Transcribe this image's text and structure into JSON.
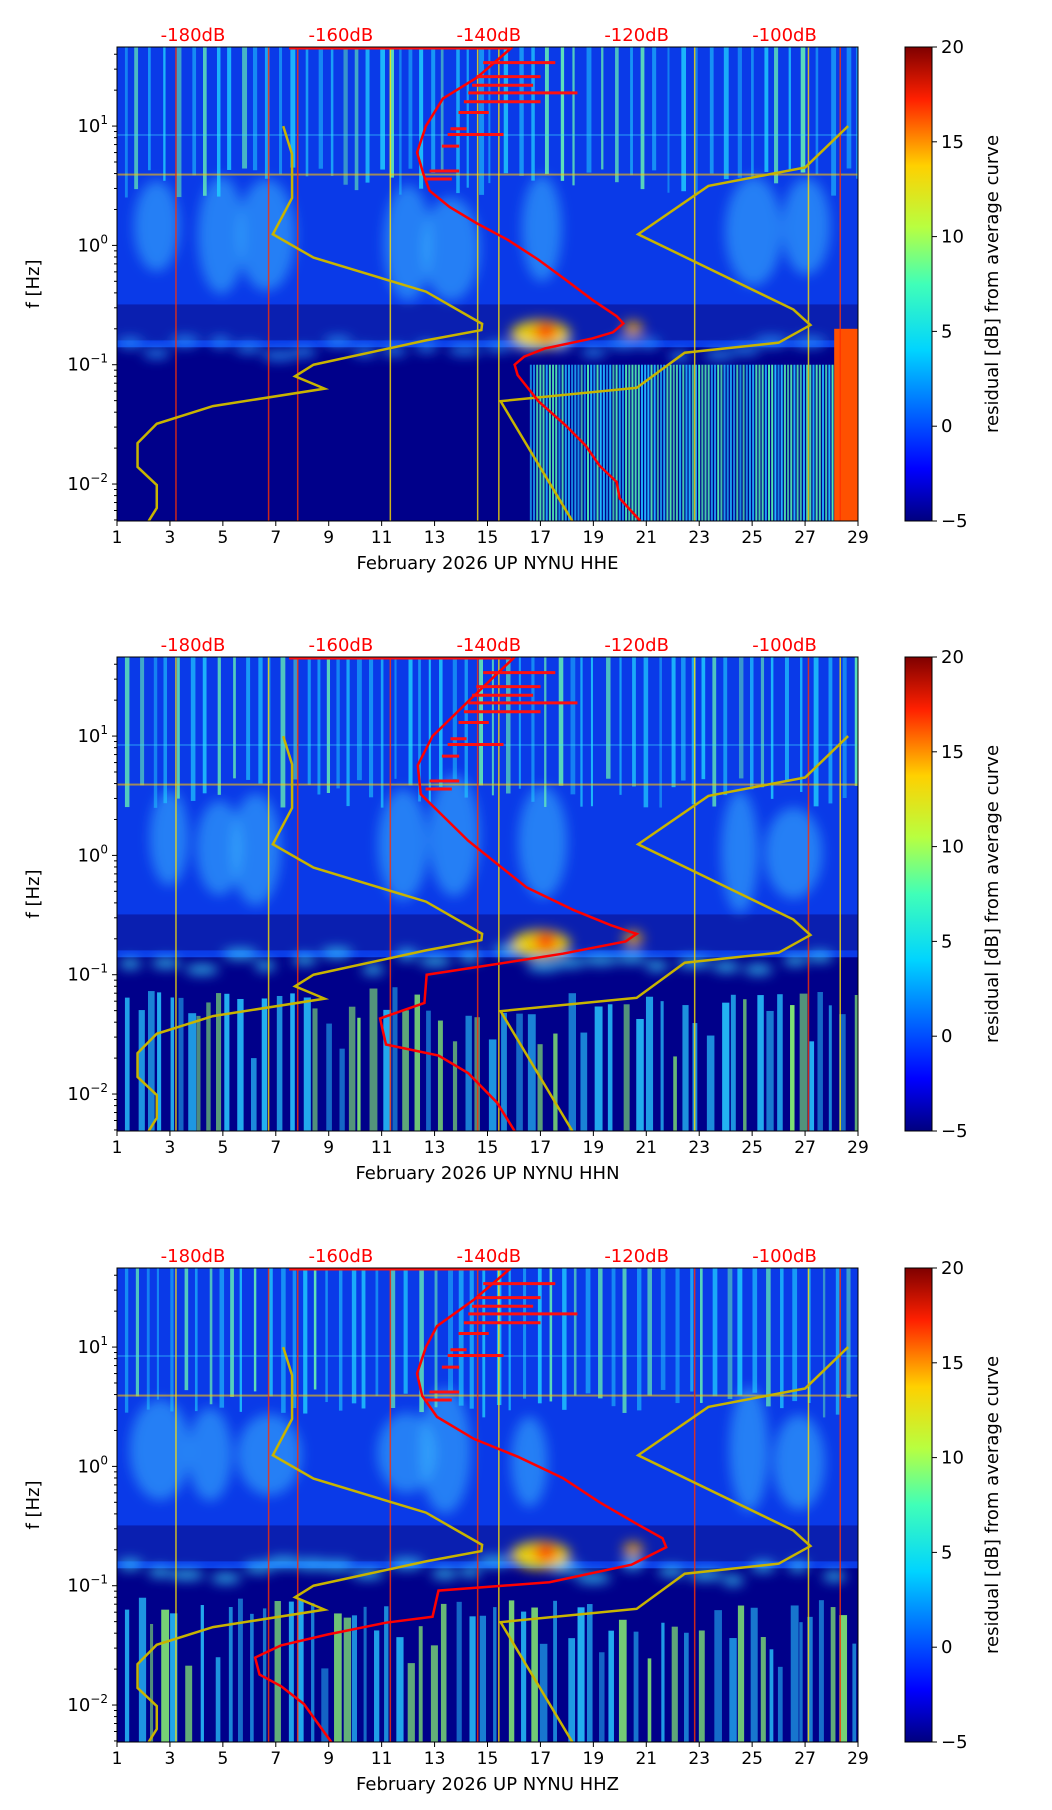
{
  "chart_data": {
    "type": "heatmap",
    "x_ticks": [
      "1",
      "3",
      "5",
      "7",
      "9",
      "11",
      "13",
      "15",
      "17",
      "19",
      "21",
      "23",
      "25",
      "27",
      "29"
    ],
    "xlim_days": [
      1,
      29
    ],
    "ylabel": "f [Hz]",
    "ylim_hz": [
      0.0049,
      46
    ],
    "y_scale": "log",
    "y_ticks": [
      {
        "base": "10",
        "exp": "1",
        "value": 10
      },
      {
        "base": "10",
        "exp": "0",
        "value": 1
      },
      {
        "base": "10",
        "exp": "−1",
        "value": 0.1
      },
      {
        "base": "10",
        "exp": "−2",
        "value": 0.01
      }
    ],
    "top_axis_ticks": [
      {
        "label": "-180dB",
        "db": -180
      },
      {
        "label": "-160dB",
        "db": -160
      },
      {
        "label": "-140dB",
        "db": -140
      },
      {
        "label": "-120dB",
        "db": -120
      },
      {
        "label": "-100dB",
        "db": -100
      }
    ],
    "top_axis_color": "#ff0000",
    "colorbar": {
      "label": "residual [dB] from average curve",
      "range": [
        -5,
        20
      ],
      "ticks": [
        "20",
        "15",
        "10",
        "5",
        "0",
        "−5"
      ],
      "colormap": "jet"
    },
    "noise_models": {
      "color": "#c8b400",
      "low": [
        [
          -167.8,
          10
        ],
        [
          -166.6,
          5.8
        ],
        [
          -166.6,
          2.5
        ],
        [
          -169.2,
          1.24
        ],
        [
          -163.7,
          0.79
        ],
        [
          -148.5,
          0.41
        ],
        [
          -140.9,
          0.22
        ],
        [
          -141.0,
          0.195
        ],
        [
          -148.5,
          0.16
        ],
        [
          -163.7,
          0.1
        ],
        [
          -166.2,
          0.08
        ],
        [
          -162.2,
          0.063
        ],
        [
          -177.3,
          0.045
        ],
        [
          -184.9,
          0.032
        ],
        [
          -187.5,
          0.022
        ],
        [
          -187.5,
          0.0139
        ],
        [
          -184.9,
          0.0098
        ],
        [
          -184.9,
          0.0063
        ],
        [
          -186.0,
          0.0049
        ]
      ],
      "high": [
        [
          -91.4,
          10
        ],
        [
          -97.2,
          4.5
        ],
        [
          -110.3,
          3.15
        ],
        [
          -119.8,
          1.24
        ],
        [
          -98.8,
          0.29
        ],
        [
          -96.5,
          0.215
        ],
        [
          -100.8,
          0.153
        ],
        [
          -113.5,
          0.126
        ],
        [
          -120.0,
          0.064
        ],
        [
          -138.4,
          0.0495
        ],
        [
          -128.7,
          0.0049
        ]
      ]
    },
    "panels": [
      {
        "xlabel": "February 2026 UP NYNU  HHE",
        "psd_color": "#ff0000",
        "psd": [
          [
            -136.8,
            46
          ],
          [
            -141.6,
            25.5
          ],
          [
            -146.2,
            17
          ],
          [
            -148.5,
            10
          ],
          [
            -149.7,
            6
          ],
          [
            -148.8,
            3.9
          ],
          [
            -148.0,
            2.87
          ],
          [
            -145.3,
            2.1
          ],
          [
            -141.6,
            1.53
          ],
          [
            -137.5,
            1.12
          ],
          [
            -133.3,
            0.76
          ],
          [
            -129.6,
            0.515
          ],
          [
            -126.0,
            0.35
          ],
          [
            -122.7,
            0.255
          ],
          [
            -121.8,
            0.222
          ],
          [
            -123.2,
            0.187
          ],
          [
            -126.0,
            0.166
          ],
          [
            -132.4,
            0.137
          ],
          [
            -135.2,
            0.117
          ],
          [
            -136.5,
            0.1
          ],
          [
            -136.1,
            0.082
          ],
          [
            -133.3,
            0.0495
          ],
          [
            -129.6,
            0.031
          ],
          [
            -126.9,
            0.021
          ],
          [
            -125.0,
            0.0142
          ],
          [
            -122.7,
            0.0104
          ],
          [
            -122.3,
            0.0076
          ],
          [
            -119.5,
            0.0049
          ]
        ]
      },
      {
        "xlabel": "February 2026 UP NYNU  HHN",
        "psd_color": "#ff0000",
        "psd": [
          [
            -136.5,
            46
          ],
          [
            -142.8,
            19.5
          ],
          [
            -147.6,
            10
          ],
          [
            -149.6,
            5.7
          ],
          [
            -149.2,
            3.26
          ],
          [
            -142.8,
            1.33
          ],
          [
            -134.9,
            0.54
          ],
          [
            -128.6,
            0.35
          ],
          [
            -123.5,
            0.26
          ],
          [
            -120.0,
            0.22
          ],
          [
            -121.5,
            0.19
          ],
          [
            -130,
            0.15
          ],
          [
            -140,
            0.12
          ],
          [
            -148.4,
            0.1
          ],
          [
            -148.7,
            0.058
          ],
          [
            -154.7,
            0.043
          ],
          [
            -153.9,
            0.026
          ],
          [
            -146.8,
            0.021
          ],
          [
            -142.8,
            0.015
          ],
          [
            -138.9,
            0.0085
          ],
          [
            -136.5,
            0.0049
          ]
        ]
      },
      {
        "xlabel": "February 2026 UP NYNU  HHZ",
        "psd_color": "#ff0000",
        "psd": [
          [
            -137,
            46
          ],
          [
            -142,
            25
          ],
          [
            -147,
            15
          ],
          [
            -148.5,
            10
          ],
          [
            -149.7,
            6
          ],
          [
            -149,
            3.9
          ],
          [
            -147,
            2.6
          ],
          [
            -142,
            1.7
          ],
          [
            -136,
            1.2
          ],
          [
            -130,
            0.8
          ],
          [
            -125,
            0.5
          ],
          [
            -120,
            0.33
          ],
          [
            -116.5,
            0.25
          ],
          [
            -116,
            0.21
          ],
          [
            -120.7,
            0.15
          ],
          [
            -131.8,
            0.107
          ],
          [
            -146.8,
            0.091
          ],
          [
            -147.6,
            0.055
          ],
          [
            -153.9,
            0.049
          ],
          [
            -161.8,
            0.039
          ],
          [
            -168.1,
            0.0316
          ],
          [
            -171.6,
            0.025
          ],
          [
            -171.0,
            0.018
          ],
          [
            -168.1,
            0.0144
          ],
          [
            -165.0,
            0.0102
          ],
          [
            -161.3,
            0.0049
          ]
        ]
      }
    ]
  }
}
